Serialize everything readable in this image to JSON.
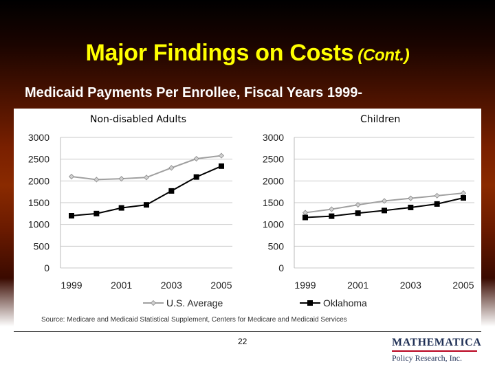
{
  "slide": {
    "title": "Major Findings on Costs",
    "title_suffix": "(Cont.)",
    "subtitle": "Medicaid Payments Per Enrollee, Fiscal Years 1999-",
    "source": "Source: Medicare and Medicaid Statistical Supplement, Centers for Medicare and Medicaid Services",
    "page_number": "22",
    "logo": {
      "top": "MATHEMATICA",
      "bottom": "Policy Research, Inc."
    }
  },
  "colors": {
    "us_average": "#a0a0a0",
    "oklahoma": "#000000",
    "title": "#ffff00",
    "logo_rule": "#b8001c"
  },
  "chart_data": [
    {
      "type": "line",
      "title": "Non-disabled  Adults",
      "x": [
        1999,
        2000,
        2001,
        2002,
        2003,
        2004,
        2005
      ],
      "x_tick_labels": [
        "1999",
        "2001",
        "2003",
        "2005"
      ],
      "ylim": [
        0,
        3000
      ],
      "y_ticks": [
        0,
        500,
        1000,
        1500,
        2000,
        2500,
        3000
      ],
      "grid": true,
      "legend_placement": "bottom",
      "series": [
        {
          "name": "U.S. Average",
          "marker": "diamond",
          "values": [
            2100,
            2030,
            2050,
            2080,
            2300,
            2510,
            2580
          ]
        },
        {
          "name": "Oklahoma",
          "marker": "square",
          "values": [
            1200,
            1250,
            1380,
            1450,
            1770,
            2090,
            2340
          ]
        }
      ]
    },
    {
      "type": "line",
      "title": "Children",
      "x": [
        1999,
        2000,
        2001,
        2002,
        2003,
        2004,
        2005
      ],
      "x_tick_labels": [
        "1999",
        "2001",
        "2003",
        "2005"
      ],
      "ylim": [
        0,
        3000
      ],
      "y_ticks": [
        0,
        500,
        1000,
        1500,
        2000,
        2500,
        3000
      ],
      "grid": true,
      "legend_placement": "bottom",
      "series": [
        {
          "name": "U.S. Average",
          "marker": "diamond",
          "values": [
            1270,
            1350,
            1450,
            1540,
            1600,
            1660,
            1720
          ]
        },
        {
          "name": "Oklahoma",
          "marker": "square",
          "values": [
            1160,
            1190,
            1260,
            1320,
            1390,
            1470,
            1610
          ]
        }
      ]
    }
  ]
}
